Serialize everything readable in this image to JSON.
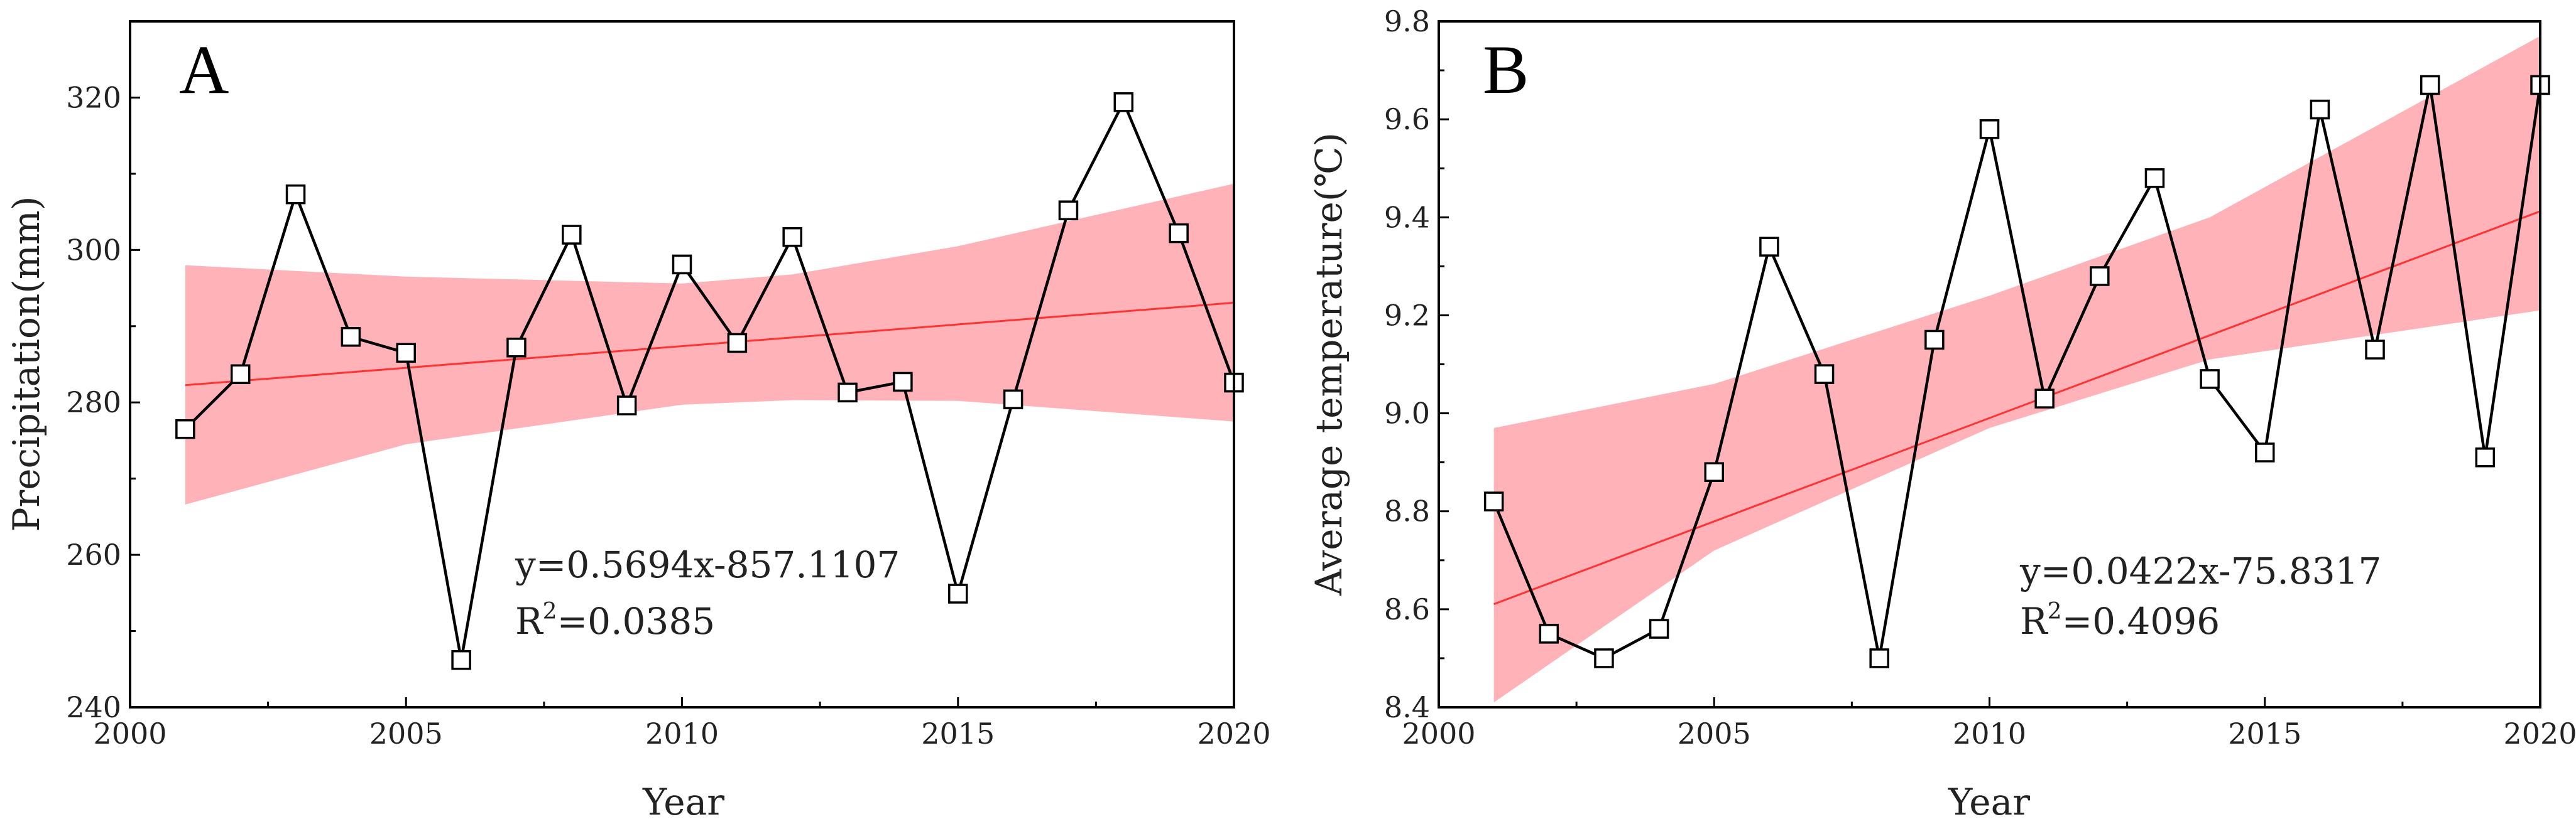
{
  "chart_data": [
    {
      "type": "line",
      "panel_label": "A",
      "xlabel": "Year",
      "ylabel": "Precipitation(mm)",
      "xlim": [
        2000,
        2020
      ],
      "ylim": [
        240,
        330
      ],
      "xticks": [
        2000,
        2005,
        2010,
        2015,
        2020
      ],
      "yticks": [
        240,
        260,
        280,
        300,
        320
      ],
      "x": [
        2001,
        2002,
        2003,
        2004,
        2005,
        2006,
        2007,
        2008,
        2009,
        2010,
        2011,
        2012,
        2013,
        2014,
        2015,
        2016,
        2017,
        2018,
        2019,
        2020
      ],
      "series": [
        {
          "name": "Precipitation",
          "values": [
            276.5,
            283.7,
            307.3,
            288.6,
            286.5,
            246.2,
            287.2,
            302.0,
            279.6,
            298.1,
            287.8,
            301.7,
            281.3,
            282.7,
            254.9,
            280.4,
            305.2,
            319.4,
            302.2,
            282.6
          ]
        }
      ],
      "trend": {
        "slope": 0.5694,
        "intercept": -857.1107
      },
      "confidence_band": {
        "x": [
          2001,
          2005,
          2010,
          2012,
          2015,
          2020
        ],
        "lower": [
          266.6,
          274.5,
          279.7,
          280.3,
          280.2,
          277.5
        ],
        "upper": [
          298.0,
          296.5,
          295.6,
          296.8,
          300.5,
          308.7
        ]
      },
      "equation_line1": "y=0.5694x-857.1107",
      "r2_prefix": "R",
      "r2_exp": "2",
      "r2_value": "=0.0385"
    },
    {
      "type": "line",
      "panel_label": "B",
      "xlabel": "Year",
      "ylabel": "Average temperature(℃)",
      "xlim": [
        2000,
        2020
      ],
      "ylim": [
        8.4,
        9.8
      ],
      "xticks": [
        2000,
        2005,
        2010,
        2015,
        2020
      ],
      "yticks": [
        8.4,
        8.6,
        8.8,
        9.0,
        9.2,
        9.4,
        9.6,
        9.8
      ],
      "yticklabels": [
        "8.4",
        "8.6",
        "8.8",
        "9.0",
        "9.2",
        "9.4",
        "9.6",
        "9.8"
      ],
      "x": [
        2001,
        2002,
        2003,
        2004,
        2005,
        2006,
        2007,
        2008,
        2009,
        2010,
        2011,
        2012,
        2013,
        2014,
        2015,
        2016,
        2017,
        2018,
        2019,
        2020
      ],
      "series": [
        {
          "name": "Average temperature",
          "values": [
            8.82,
            8.55,
            8.5,
            8.56,
            8.88,
            9.34,
            9.08,
            8.5,
            9.15,
            9.58,
            9.03,
            9.28,
            9.48,
            9.07,
            8.92,
            9.62,
            9.13,
            9.67,
            8.91,
            9.67
          ]
        }
      ],
      "trend": {
        "slope": 0.0422,
        "intercept": -75.8317
      },
      "confidence_band": {
        "x": [
          2001,
          2005,
          2010,
          2014,
          2020
        ],
        "lower": [
          8.41,
          8.72,
          8.97,
          9.11,
          9.21
        ],
        "upper": [
          8.97,
          9.06,
          9.24,
          9.4,
          9.77
        ]
      },
      "equation_line1": "y=0.0422x-75.8317",
      "r2_prefix": "R",
      "r2_exp": "2",
      "r2_value": "=0.4096"
    }
  ]
}
